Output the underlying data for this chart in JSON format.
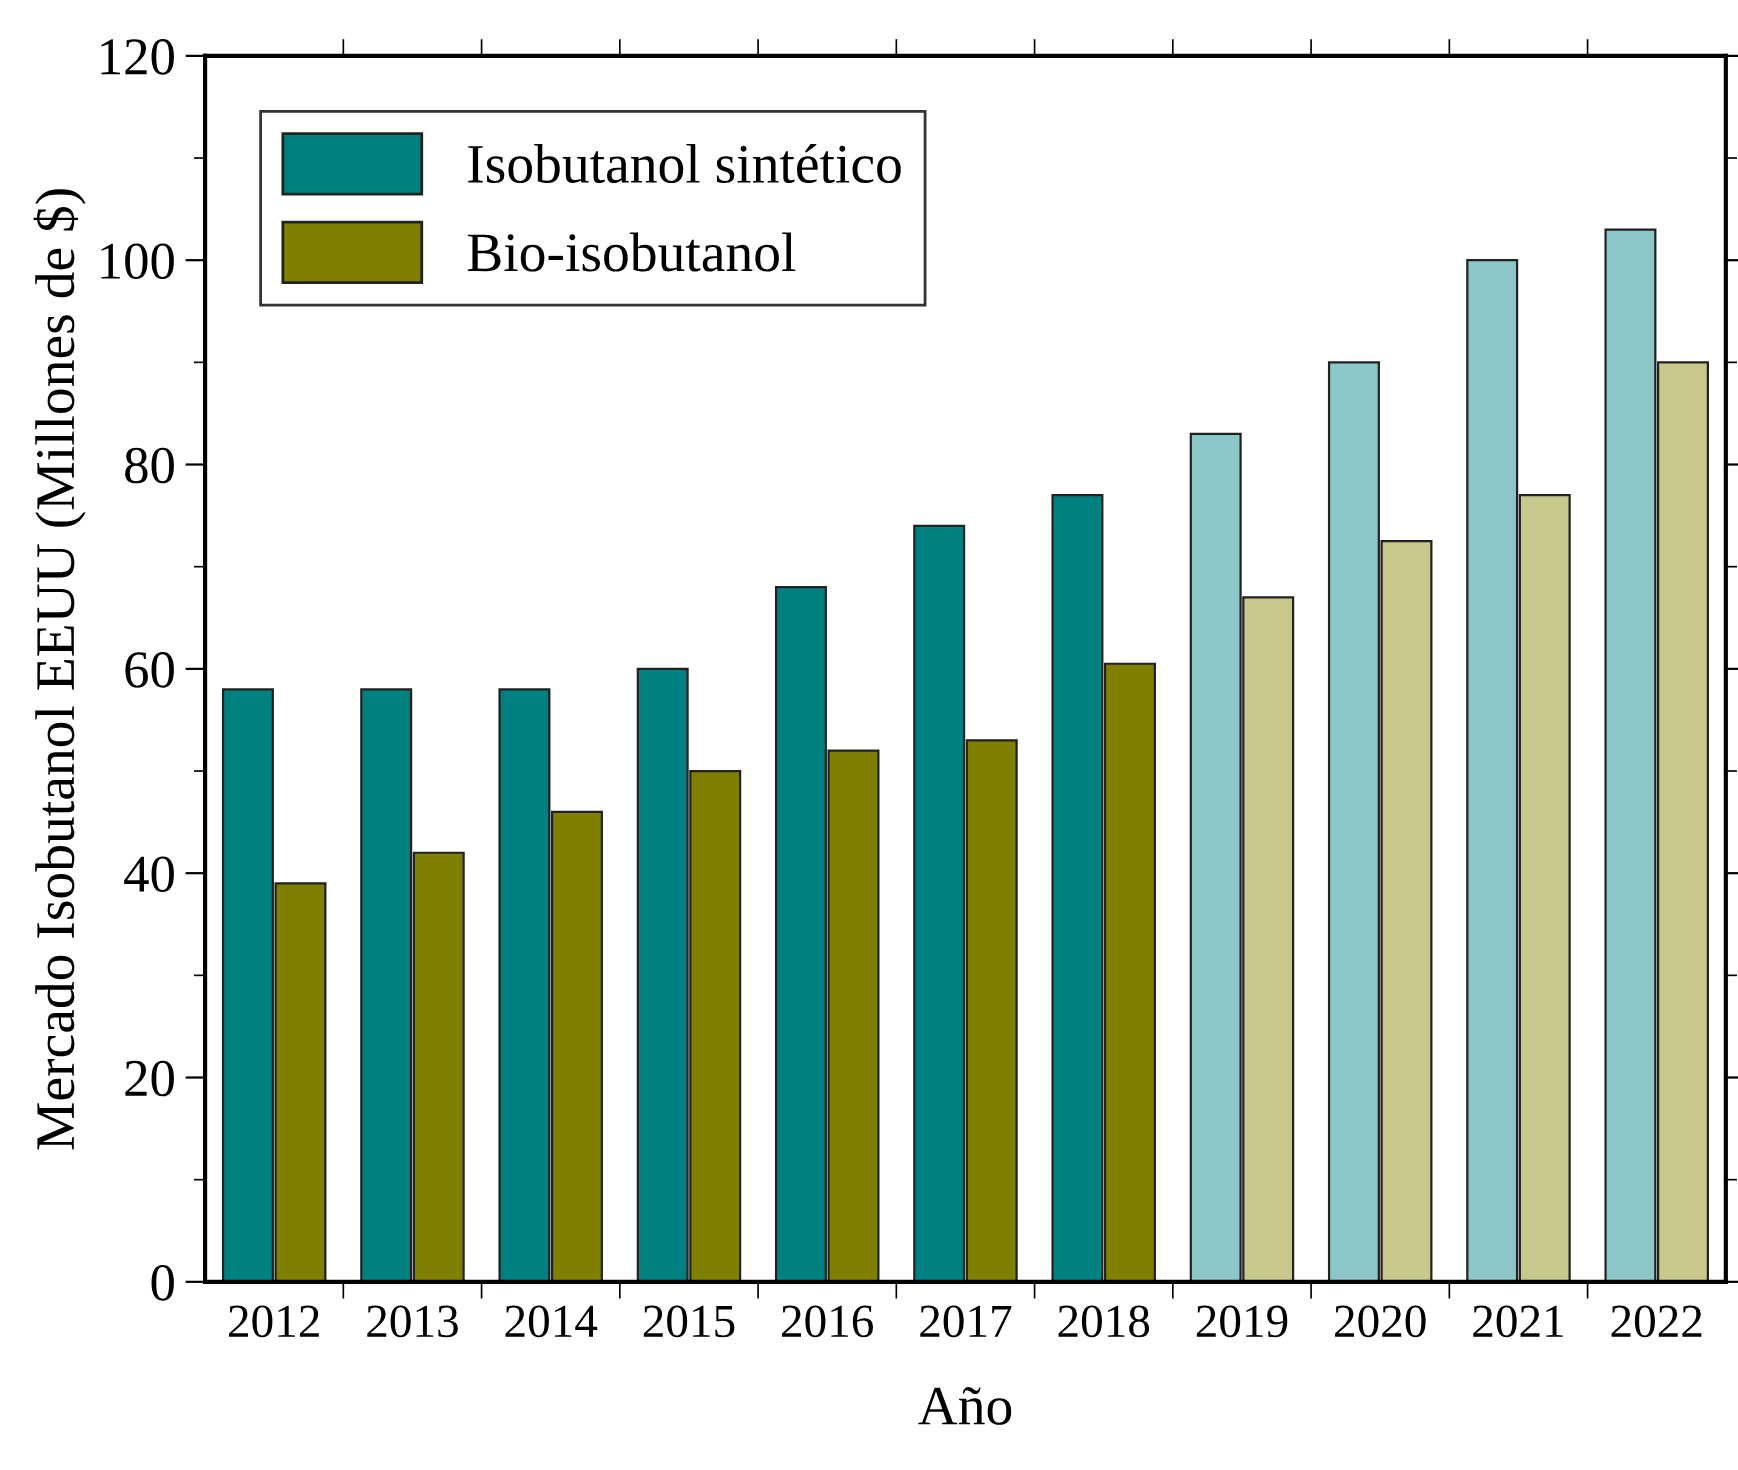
{
  "chart_data": {
    "type": "bar",
    "xlabel": "Año",
    "ylabel": "Mercado Isobutanol EEUU (Millones de $)",
    "categories": [
      "2012",
      "2013",
      "2014",
      "2015",
      "2016",
      "2017",
      "2018",
      "2019",
      "2020",
      "2021",
      "2022"
    ],
    "series": [
      {
        "name": "Isobutanol sintético",
        "color": "#008080",
        "colors": [
          "#008080",
          "#008080",
          "#008080",
          "#008080",
          "#008080",
          "#008080",
          "#008080",
          "#8cc6c6",
          "#8cc6c6",
          "#8cc6c6",
          "#8cc6c6"
        ],
        "values": [
          58,
          58,
          58,
          60,
          68,
          74,
          77,
          83,
          90,
          100,
          103
        ]
      },
      {
        "name": "Bio-isobutanol",
        "color": "#808000",
        "colors": [
          "#808000",
          "#808000",
          "#808000",
          "#808000",
          "#808000",
          "#808000",
          "#808000",
          "#c8c88c",
          "#c8c88c",
          "#c8c88c",
          "#c8c88c"
        ],
        "values": [
          39,
          42,
          46,
          50,
          52,
          53,
          60.5,
          67,
          72.5,
          77,
          90
        ]
      }
    ],
    "ylim": [
      0,
      120
    ],
    "yticks": [
      0,
      20,
      40,
      60,
      80,
      100,
      120
    ],
    "grid": false,
    "legend": "top left"
  }
}
